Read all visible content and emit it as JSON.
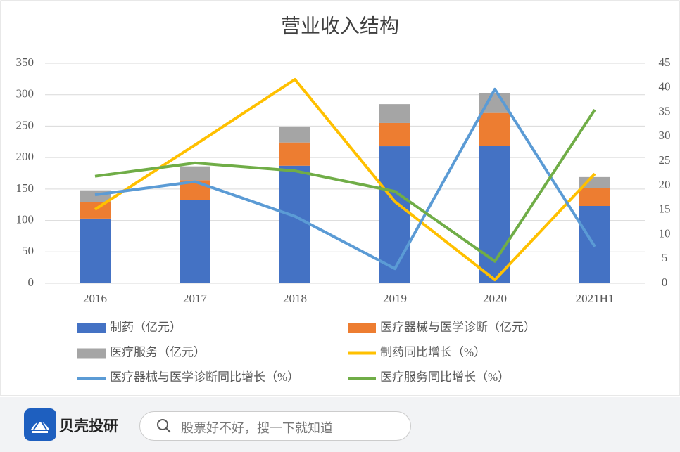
{
  "chart_data": {
    "type": "bar",
    "title": "营业收入结构",
    "categories": [
      "2016",
      "2017",
      "2018",
      "2019",
      "2020",
      "2021H1"
    ],
    "series": [
      {
        "name": "制药（亿元）",
        "type": "bar",
        "color": "#4472c4",
        "values": [
          103,
          132,
          187,
          218,
          219,
          123
        ]
      },
      {
        "name": "医疗器械与医学诊断（亿元）",
        "type": "bar",
        "color": "#ed7d31",
        "values": [
          26,
          32,
          37,
          37,
          52,
          28
        ]
      },
      {
        "name": "医疗服务（亿元）",
        "type": "bar",
        "color": "#a5a5a5",
        "values": [
          19,
          22,
          25,
          30,
          32,
          18
        ]
      },
      {
        "name": "制药同比增长（%）",
        "type": "line",
        "axis": "y2",
        "color": "#ffc000",
        "values": [
          15.1,
          28.3,
          41.7,
          16.7,
          0.7,
          22.4
        ]
      },
      {
        "name": "医疗器械与医学诊断同比增长（%）",
        "type": "line",
        "axis": "y2",
        "color": "#5b9bd5",
        "values": [
          18.1,
          20.8,
          13.7,
          3.0,
          39.7,
          7.5
        ]
      },
      {
        "name": "医疗服务同比增长（%）",
        "type": "line",
        "axis": "y2",
        "color": "#70ad47",
        "values": [
          21.9,
          24.6,
          23.0,
          18.8,
          4.5,
          35.5
        ]
      }
    ],
    "ylim": [
      0,
      350
    ],
    "yticks": [
      0,
      50,
      100,
      150,
      200,
      250,
      300,
      350
    ],
    "y2lim": [
      0,
      45
    ],
    "y2ticks": [
      0,
      5,
      10,
      15,
      20,
      25,
      30,
      35,
      40,
      45
    ],
    "grid": true,
    "legend": "bottom"
  },
  "footer": {
    "brand": "贝壳投研",
    "search_placeholder": "股票好不好，搜一下就知道"
  }
}
